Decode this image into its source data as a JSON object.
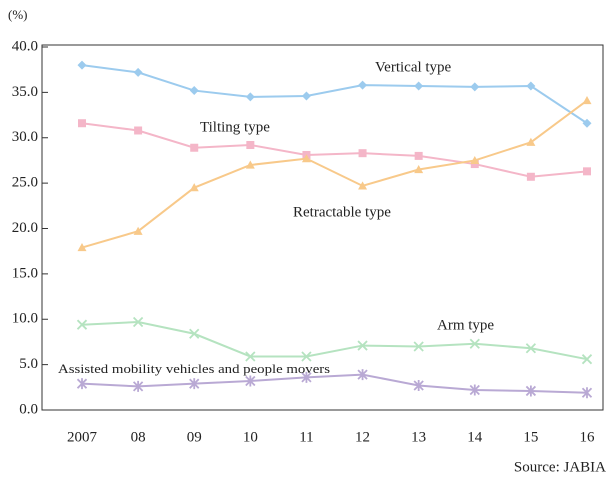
{
  "chart_data": {
    "type": "line",
    "y_label": "(%)",
    "source": "Source: JABIA",
    "categories": [
      "2007",
      "08",
      "09",
      "10",
      "11",
      "12",
      "13",
      "14",
      "15",
      "16"
    ],
    "series": [
      {
        "name": "Vertical type",
        "color": "#9ccbee",
        "marker": "diamond",
        "values": [
          38.0,
          37.2,
          35.2,
          34.5,
          34.6,
          35.8,
          35.7,
          35.6,
          35.7,
          31.6
        ]
      },
      {
        "name": "Tilting type",
        "color": "#f4b6c8",
        "marker": "square",
        "values": [
          31.6,
          30.8,
          28.9,
          29.2,
          28.1,
          28.3,
          28.0,
          27.1,
          25.7,
          26.3
        ]
      },
      {
        "name": "Retractable type",
        "color": "#f8c98a",
        "marker": "triangle",
        "values": [
          17.9,
          19.7,
          24.5,
          27.0,
          27.7,
          24.7,
          26.5,
          27.5,
          29.5,
          34.1
        ]
      },
      {
        "name": "Arm type",
        "color": "#b5e3c0",
        "marker": "x",
        "values": [
          9.4,
          9.7,
          8.4,
          5.9,
          5.9,
          7.1,
          7.0,
          7.3,
          6.8,
          5.6
        ]
      },
      {
        "name": "Assisted mobility vehicles and people movers",
        "color": "#b9a9d4",
        "marker": "asterisk",
        "values": [
          2.9,
          2.6,
          2.9,
          3.2,
          3.6,
          3.9,
          2.7,
          2.2,
          2.1,
          1.9
        ]
      }
    ],
    "ylim": [
      0,
      40
    ],
    "yticks": [
      {
        "value": 0,
        "label": "0.0"
      },
      {
        "value": 5,
        "label": "5.0"
      },
      {
        "value": 10,
        "label": "10.0"
      },
      {
        "value": 15,
        "label": "15.0"
      },
      {
        "value": 20,
        "label": "20.0"
      },
      {
        "value": 25,
        "label": "25.0"
      },
      {
        "value": 30,
        "label": "30.0"
      },
      {
        "value": 35,
        "label": "35.0"
      },
      {
        "value": 40,
        "label": "40.0"
      }
    ],
    "grid": false
  }
}
